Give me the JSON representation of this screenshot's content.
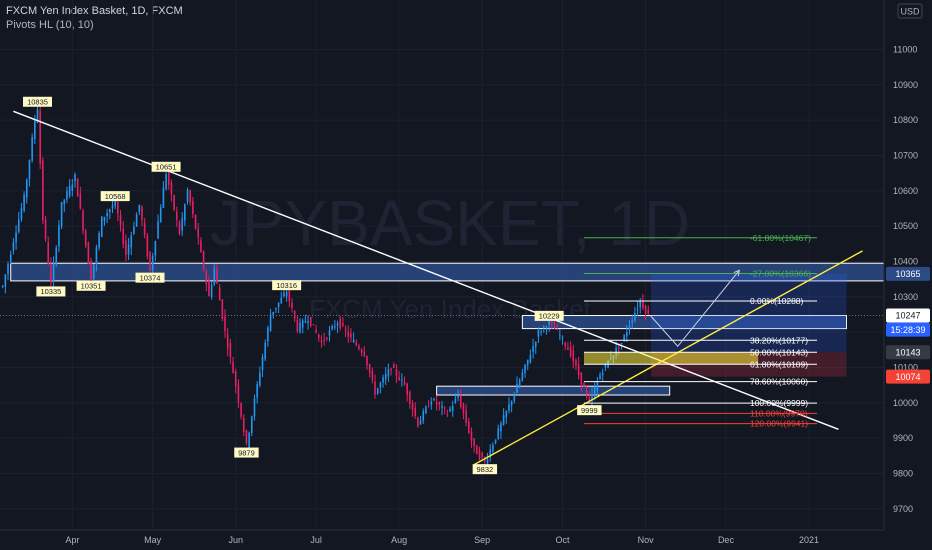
{
  "header": {
    "title": "FXCM Yen Index Basket, 1D, FXCM",
    "indicator": "Pivots HL (10, 10)"
  },
  "currency": "USD",
  "watermark": {
    "symbol": "JPYBASKET, 1D",
    "name": "FXCM Yen Index Basket"
  },
  "colors": {
    "background": "#131722",
    "up": "#2196f3",
    "down": "#e91e63",
    "zone_fill": "#2c4a86",
    "trendline": "#ffffff",
    "support_line": "#ffeb3b",
    "fib_green": "#4caf50",
    "fib_white": "#ffffff",
    "fib_red": "#f44336",
    "price_badge": "#ffffff",
    "countdown_badge": "#2962ff"
  },
  "chart_data": {
    "type": "candlestick",
    "ylim": [
      9640,
      11140
    ],
    "y_ticks": [
      9700,
      9800,
      9900,
      10000,
      10100,
      10200,
      10300,
      10400,
      10500,
      10600,
      10700,
      10800,
      10900,
      11000
    ],
    "x_ticks": [
      {
        "label": "Apr",
        "day": 27
      },
      {
        "label": "May",
        "day": 57
      },
      {
        "label": "Jun",
        "day": 88
      },
      {
        "label": "Jul",
        "day": 118
      },
      {
        "label": "Aug",
        "day": 149
      },
      {
        "label": "Sep",
        "day": 180
      },
      {
        "label": "Oct",
        "day": 210
      },
      {
        "label": "Nov",
        "day": 241
      },
      {
        "label": "Dec",
        "day": 271
      },
      {
        "label": "2021",
        "day": 302
      }
    ],
    "x_range": [
      0,
      330
    ],
    "keypoints": [
      [
        1,
        10330
      ],
      [
        5,
        10460
      ],
      [
        9,
        10580
      ],
      [
        13,
        10800
      ],
      [
        14,
        10835
      ],
      [
        16,
        10520
      ],
      [
        19,
        10335
      ],
      [
        23,
        10560
      ],
      [
        28,
        10640
      ],
      [
        34,
        10351
      ],
      [
        38,
        10520
      ],
      [
        43,
        10568
      ],
      [
        47,
        10420
      ],
      [
        52,
        10560
      ],
      [
        56,
        10374
      ],
      [
        62,
        10651
      ],
      [
        67,
        10480
      ],
      [
        70,
        10600
      ],
      [
        74,
        10460
      ],
      [
        78,
        10300
      ],
      [
        80,
        10380
      ],
      [
        84,
        10200
      ],
      [
        88,
        10050
      ],
      [
        92,
        9879
      ],
      [
        96,
        10050
      ],
      [
        101,
        10250
      ],
      [
        107,
        10316
      ],
      [
        111,
        10210
      ],
      [
        115,
        10240
      ],
      [
        120,
        10170
      ],
      [
        126,
        10230
      ],
      [
        131,
        10180
      ],
      [
        136,
        10140
      ],
      [
        140,
        10030
      ],
      [
        146,
        10100
      ],
      [
        151,
        10050
      ],
      [
        156,
        9940
      ],
      [
        161,
        10010
      ],
      [
        167,
        9970
      ],
      [
        171,
        10020
      ],
      [
        177,
        9870
      ],
      [
        181,
        9832
      ],
      [
        186,
        9920
      ],
      [
        191,
        10010
      ],
      [
        196,
        10100
      ],
      [
        201,
        10200
      ],
      [
        205,
        10229
      ],
      [
        209,
        10190
      ],
      [
        213,
        10140
      ],
      [
        217,
        10060
      ],
      [
        220,
        9999
      ],
      [
        224,
        10080
      ],
      [
        228,
        10130
      ],
      [
        232,
        10170
      ],
      [
        236,
        10240
      ],
      [
        239,
        10288
      ],
      [
        242,
        10247
      ]
    ],
    "pivots": [
      {
        "value": "10835",
        "day": 14,
        "price": 10835,
        "pos": "high"
      },
      {
        "value": "10651",
        "day": 62,
        "price": 10651,
        "pos": "high"
      },
      {
        "value": "10568",
        "day": 43,
        "price": 10568,
        "pos": "high"
      },
      {
        "value": "10316",
        "day": 107,
        "price": 10316,
        "pos": "high"
      },
      {
        "value": "10229",
        "day": 205,
        "price": 10229,
        "pos": "high"
      },
      {
        "value": "10335",
        "day": 19,
        "price": 10335,
        "pos": "low"
      },
      {
        "value": "10351",
        "day": 34,
        "price": 10351,
        "pos": "low"
      },
      {
        "value": "10374",
        "day": 56,
        "price": 10374,
        "pos": "low"
      },
      {
        "value": "9879",
        "day": 92,
        "price": 9879,
        "pos": "low"
      },
      {
        "value": "9832",
        "day": 181,
        "price": 9832,
        "pos": "low"
      },
      {
        "value": "9999",
        "day": 220,
        "price": 9999,
        "pos": "low"
      }
    ],
    "zones": [
      {
        "day_from": 4,
        "day_to": 330,
        "price_top": 10395,
        "price_bottom": 10345
      },
      {
        "day_from": 195,
        "day_to": 316,
        "price_top": 10247,
        "price_bottom": 10210
      },
      {
        "day_from": 163,
        "day_to": 250,
        "price_top": 10047,
        "price_bottom": 10022
      }
    ],
    "trendlines": [
      {
        "from": [
          5,
          10825
        ],
        "to": [
          313,
          9925
        ],
        "color": "trendline"
      },
      {
        "from": [
          177,
          9825
        ],
        "to": [
          322,
          10430
        ],
        "color": "support_line"
      }
    ],
    "fib_levels": [
      {
        "label": "-61.80%(10467)",
        "price": 10467,
        "color": "fib_green",
        "from": 218,
        "to": 305
      },
      {
        "label": "-27.00%(10366)",
        "price": 10366,
        "color": "fib_green",
        "from": 218,
        "to": 305
      },
      {
        "label": "0.00%(10288)",
        "price": 10288,
        "color": "fib_white",
        "from": 218,
        "to": 305
      },
      {
        "label": "38.20%(10177)",
        "price": 10177,
        "color": "fib_white",
        "from": 218,
        "to": 305
      },
      {
        "label": "50.00%(10143)",
        "price": 10143,
        "color": "fib_white",
        "from": 218,
        "to": 305
      },
      {
        "label": "61.80%(10109)",
        "price": 10109,
        "color": "fib_white",
        "from": 218,
        "to": 305
      },
      {
        "label": "78.60%(10060)",
        "price": 10060,
        "color": "fib_white",
        "from": 218,
        "to": 305
      },
      {
        "label": "100.00%(9999)",
        "price": 9999,
        "color": "fib_white",
        "from": 218,
        "to": 305
      },
      {
        "label": "110.00%(9970)",
        "price": 9970,
        "color": "fib_red",
        "from": 218,
        "to": 305
      },
      {
        "label": "120.00%(9941)",
        "price": 9941,
        "color": "fib_red",
        "from": 218,
        "to": 305
      }
    ],
    "fib_band": {
      "price_top": 10143,
      "price_bottom": 10109,
      "day_from": 218,
      "day_to": 283
    },
    "projection": [
      [
        243,
        10245
      ],
      [
        253,
        10160
      ],
      [
        276,
        10375
      ]
    ],
    "position": {
      "day_from": 243,
      "day_to": 316,
      "entry": 10143,
      "target": 10365,
      "stop": 10074
    },
    "price_badges": [
      {
        "text": "10365",
        "price": 10365,
        "style": "zone"
      },
      {
        "text": "10247",
        "price": 10247,
        "style": "last"
      },
      {
        "text": "15:28:39",
        "price": 10207,
        "style": "countdown"
      },
      {
        "text": "10143",
        "price": 10143,
        "style": "dark"
      },
      {
        "text": "10074",
        "price": 10074,
        "style": "red"
      }
    ]
  }
}
